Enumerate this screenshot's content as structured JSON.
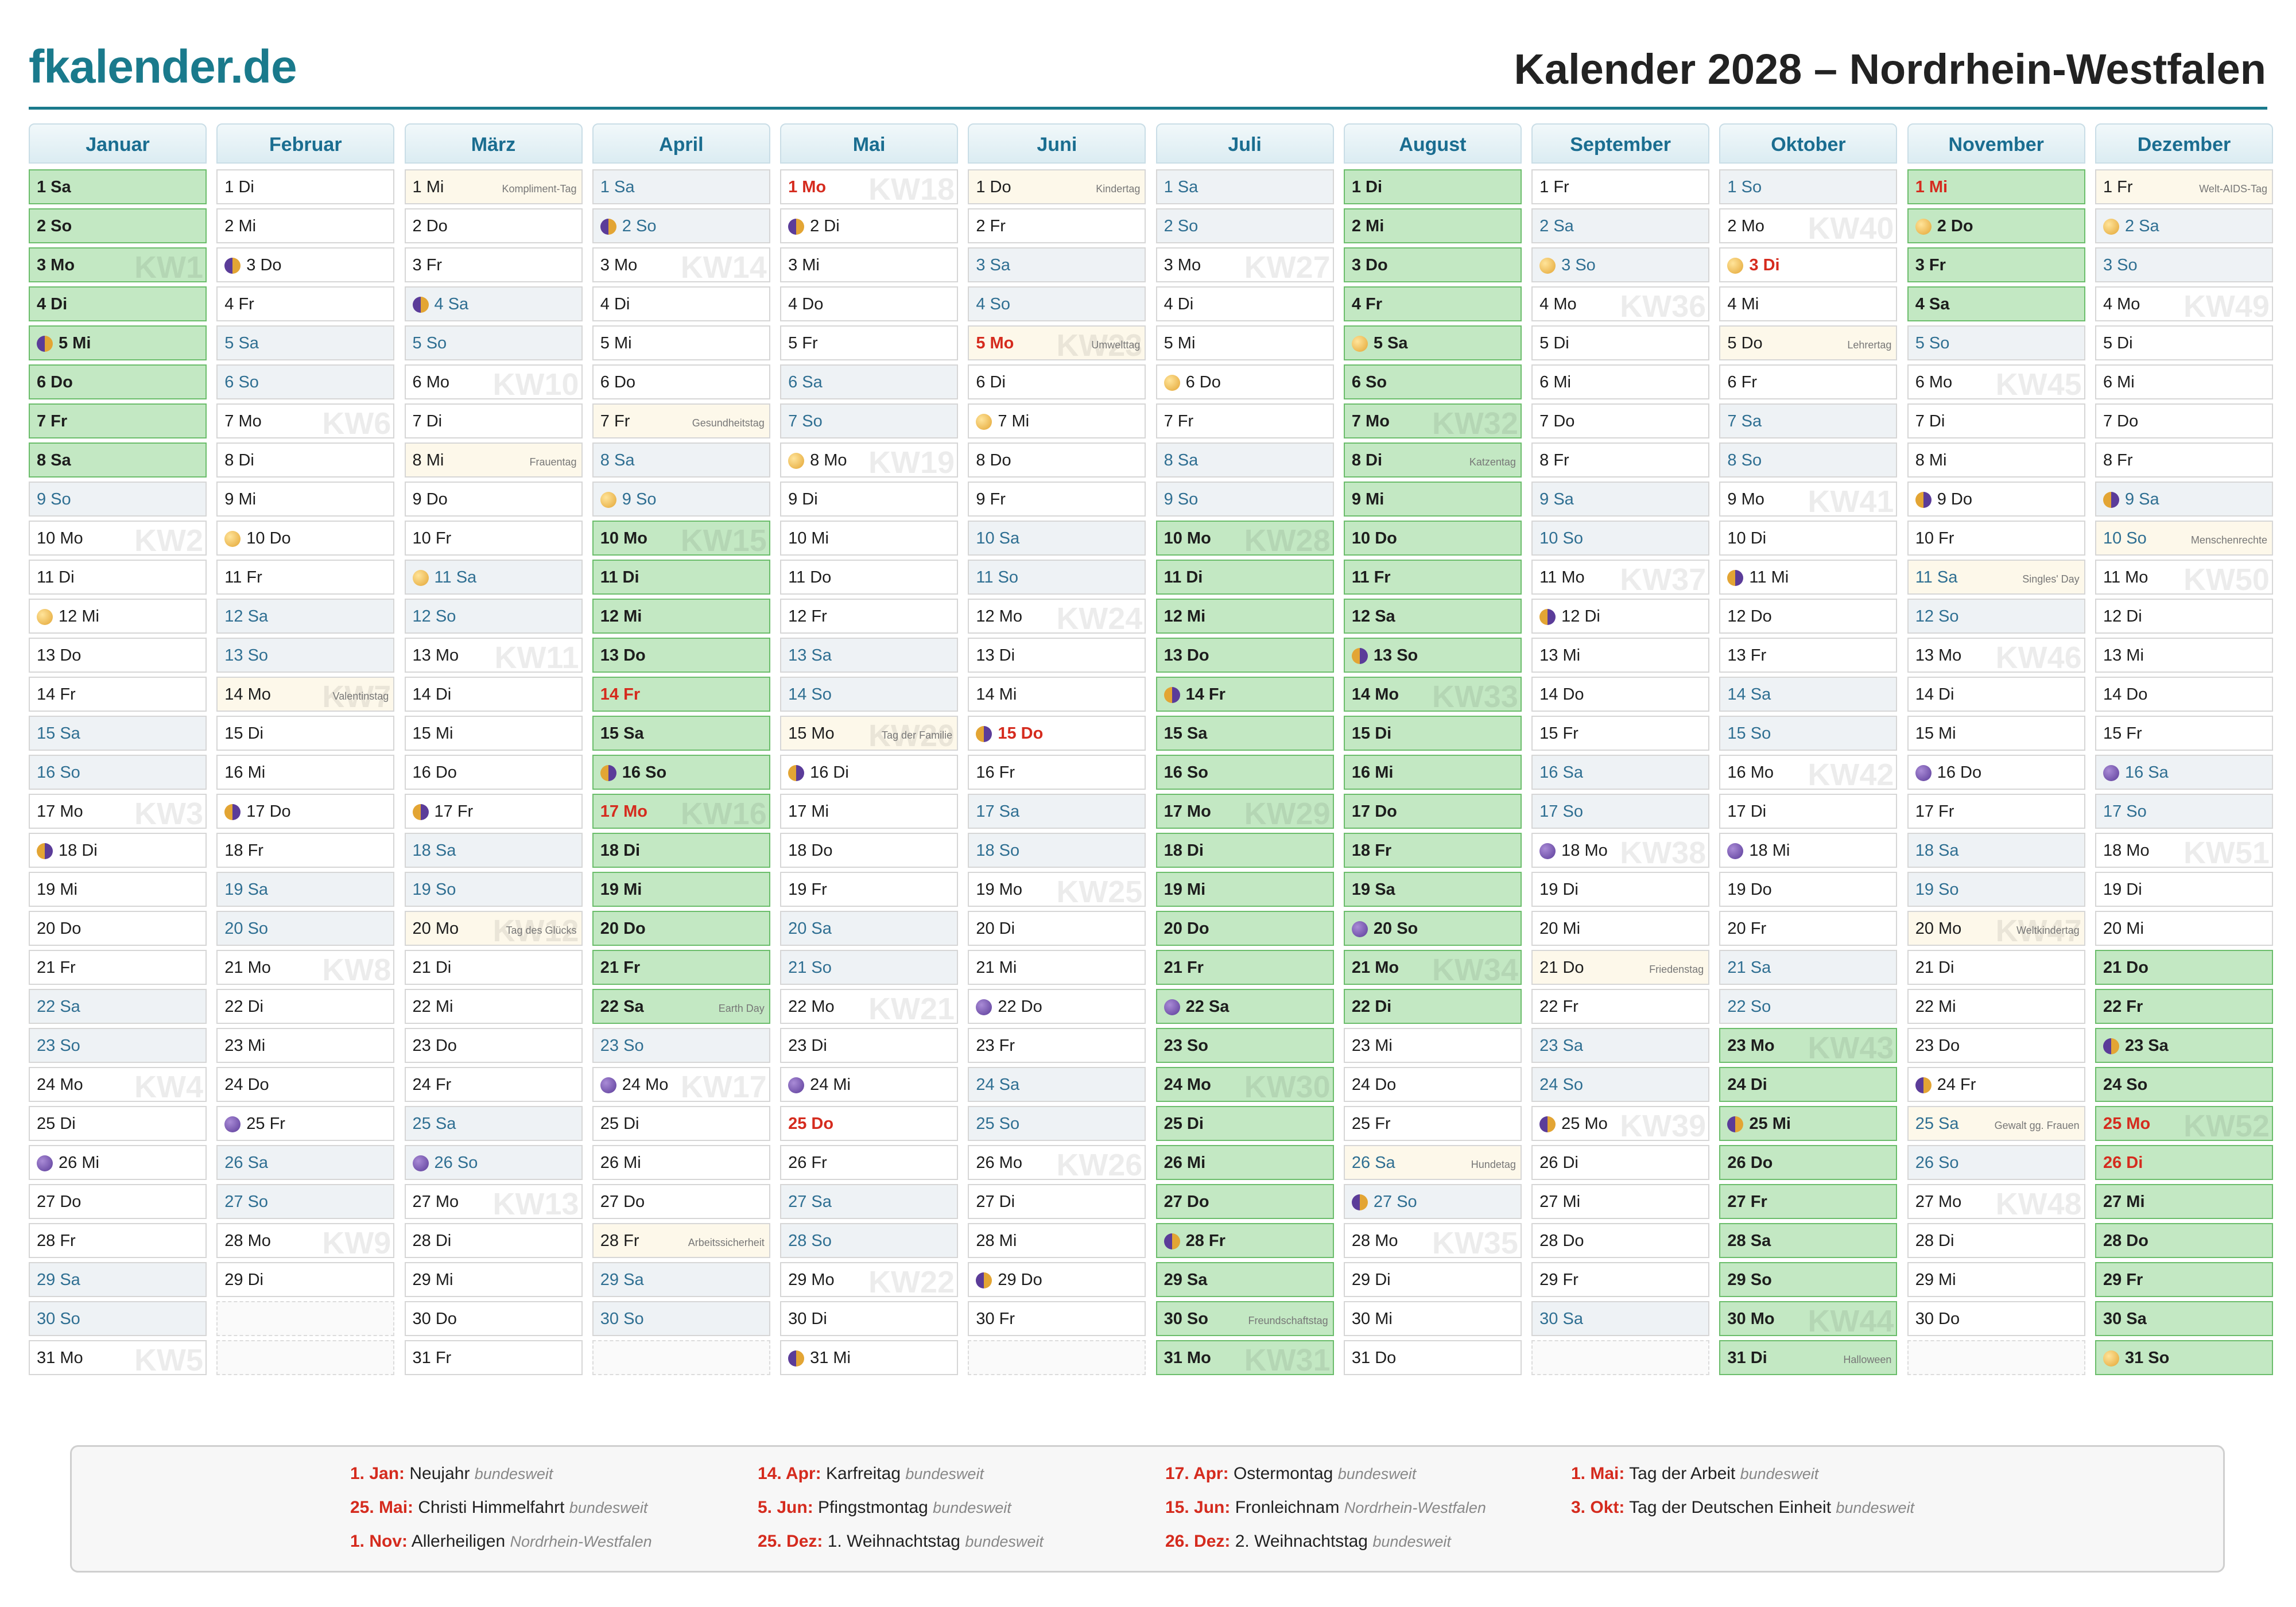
{
  "brand": "fkalender.de",
  "title": "Kalender 2028 – Nordrhein-Westfalen",
  "months": [
    {
      "name": "Januar",
      "d": [
        "1 Sa|HVW||",
        "2 So|VW||",
        "3 Mo|V|KW1|",
        "4 Di|V||",
        "5 Mi|Vl||",
        "6 Do|V||",
        "7 Fr|V||",
        "8 Sa|VW||",
        "9 So|W||",
        "10 Mo||KW2|",
        "11 Di|||",
        "12 Mi|f||",
        "13 Do|||",
        "14 Fr|||",
        "15 Sa|W||",
        "16 So|W||",
        "17 Mo||KW3|",
        "18 Di|e||",
        "19 Mi|||",
        "20 Do|||",
        "21 Fr|||",
        "22 Sa|W||",
        "23 So|W||",
        "24 Mo||KW4|",
        "25 Di|||",
        "26 Mi|n||",
        "27 Do|||",
        "28 Fr|||",
        "29 Sa|W||",
        "30 So|W||",
        "31 Mo||KW5|"
      ]
    },
    {
      "name": "Februar",
      "d": [
        "1 Di|||",
        "2 Mi|||",
        "3 Do|l||",
        "4 Fr|||",
        "5 Sa|W||",
        "6 So|W||",
        "7 Mo||KW6|",
        "8 Di|||",
        "9 Mi|||",
        "10 Do|f||",
        "11 Fr|||",
        "12 Sa|W||",
        "13 So|W||",
        "14 Mo||KW7|Valentinstag",
        "15 Di|||",
        "16 Mi|||",
        "17 Do|e||",
        "18 Fr|||",
        "19 Sa|W||",
        "20 So|W||",
        "21 Mo||KW8|",
        "22 Di|||",
        "23 Mi|||",
        "24 Do|||",
        "25 Fr|n||",
        "26 Sa|W||",
        "27 So|W||",
        "28 Mo||KW9|",
        "29 Di|||",
        "|N||",
        "|N||"
      ]
    },
    {
      "name": "März",
      "d": [
        "1 Mi|||Kompliment-Tag",
        "2 Do|||",
        "3 Fr|||",
        "4 Sa|Wl||",
        "5 So|W||",
        "6 Mo||KW10|",
        "7 Di|||",
        "8 Mi|||Frauentag",
        "9 Do|||",
        "10 Fr|||",
        "11 Sa|Wf||",
        "12 So|W||",
        "13 Mo||KW11|",
        "14 Di|||",
        "15 Mi|||",
        "16 Do|||",
        "17 Fr|e||",
        "18 Sa|W||",
        "19 So|W||",
        "20 Mo||KW12|Tag des Glücks",
        "21 Di|||",
        "22 Mi|||",
        "23 Do|||",
        "24 Fr|||",
        "25 Sa|W||",
        "26 So|Wn||",
        "27 Mo||KW13|",
        "28 Di|||",
        "29 Mi|||",
        "30 Do|||",
        "31 Fr|||"
      ]
    },
    {
      "name": "April",
      "d": [
        "1 Sa|W||",
        "2 So|Wl||",
        "3 Mo||KW14|",
        "4 Di|||",
        "5 Mi|||",
        "6 Do|||",
        "7 Fr|||Gesundheitstag",
        "8 Sa|W||",
        "9 So|Wf||",
        "10 Mo|V|KW15|",
        "11 Di|V||",
        "12 Mi|V||",
        "13 Do|V||",
        "14 Fr|HV||",
        "15 Sa|VW||",
        "16 So|VWe||",
        "17 Mo|HV|KW16|",
        "18 Di|V||",
        "19 Mi|V||",
        "20 Do|V||",
        "21 Fr|V||",
        "22 Sa|VW||Earth Day",
        "23 So|W||",
        "24 Mo|n|KW17|",
        "25 Di|||",
        "26 Mi|||",
        "27 Do|||",
        "28 Fr|||Arbeitssicherheit",
        "29 Sa|W||",
        "30 So|W||",
        "|N||"
      ]
    },
    {
      "name": "Mai",
      "d": [
        "1 Mo|H|KW18|",
        "2 Di|l||",
        "3 Mi|||",
        "4 Do|||",
        "5 Fr|||",
        "6 Sa|W||",
        "7 So|W||",
        "8 Mo|f|KW19|",
        "9 Di|||",
        "10 Mi|||",
        "11 Do|||",
        "12 Fr|||",
        "13 Sa|W||",
        "14 So|W||",
        "15 Mo||KW20|Tag der Familie",
        "16 Di|e||",
        "17 Mi|||",
        "18 Do|||",
        "19 Fr|||",
        "20 Sa|W||",
        "21 So|W||",
        "22 Mo||KW21|",
        "23 Di|||",
        "24 Mi|n||",
        "25 Do|H||",
        "26 Fr|||",
        "27 Sa|W||",
        "28 So|W||",
        "29 Mo||KW22|",
        "30 Di|||",
        "31 Mi|l||"
      ]
    },
    {
      "name": "Juni",
      "d": [
        "1 Do|||Kindertag",
        "2 Fr|||",
        "3 Sa|W||",
        "4 So|W||",
        "5 Mo|H|KW23|Umwelttag",
        "6 Di|||",
        "7 Mi|f||",
        "8 Do|||",
        "9 Fr|||",
        "10 Sa|W||",
        "11 So|W||",
        "12 Mo||KW24|",
        "13 Di|||",
        "14 Mi|||",
        "15 Do|He||",
        "16 Fr|||",
        "17 Sa|W||",
        "18 So|W||",
        "19 Mo||KW25|",
        "20 Di|||",
        "21 Mi|||",
        "22 Do|n||",
        "23 Fr|||",
        "24 Sa|W||",
        "25 So|W||",
        "26 Mo||KW26|",
        "27 Di|||",
        "28 Mi|||",
        "29 Do|l||",
        "30 Fr|||",
        "|N||"
      ]
    },
    {
      "name": "Juli",
      "d": [
        "1 Sa|W||",
        "2 So|W||",
        "3 Mo||KW27|",
        "4 Di|||",
        "5 Mi|||",
        "6 Do|f||",
        "7 Fr|||",
        "8 Sa|W||",
        "9 So|W||",
        "10 Mo|V|KW28|",
        "11 Di|V||",
        "12 Mi|V||",
        "13 Do|V||",
        "14 Fr|Ve||",
        "15 Sa|VW||",
        "16 So|VW||",
        "17 Mo|V|KW29|",
        "18 Di|V||",
        "19 Mi|V||",
        "20 Do|V||",
        "21 Fr|V||",
        "22 Sa|VWn||",
        "23 So|VW||",
        "24 Mo|V|KW30|",
        "25 Di|V||",
        "26 Mi|V||",
        "27 Do|V||",
        "28 Fr|Vl||",
        "29 Sa|VW||",
        "30 So|VW||Freundschaftstag",
        "31 Mo|V|KW31|"
      ]
    },
    {
      "name": "August",
      "d": [
        "1 Di|V||",
        "2 Mi|V||",
        "3 Do|V||",
        "4 Fr|V||",
        "5 Sa|VWf||",
        "6 So|VW||",
        "7 Mo|V|KW32|",
        "8 Di|V||Katzentag",
        "9 Mi|V||",
        "10 Do|V||",
        "11 Fr|V||",
        "12 Sa|VW||",
        "13 So|VWe||",
        "14 Mo|V|KW33|",
        "15 Di|V||",
        "16 Mi|V||",
        "17 Do|V||",
        "18 Fr|V||",
        "19 Sa|VW||",
        "20 So|VWn||",
        "21 Mo|V|KW34|",
        "22 Di|V||",
        "23 Mi|||",
        "24 Do|||",
        "25 Fr|||",
        "26 Sa|W||Hundetag",
        "27 So|Wl||",
        "28 Mo||KW35|",
        "29 Di|||",
        "30 Mi|||",
        "31 Do|||"
      ]
    },
    {
      "name": "September",
      "d": [
        "1 Fr|||",
        "2 Sa|W||",
        "3 So|Wf||",
        "4 Mo||KW36|",
        "5 Di|||",
        "6 Mi|||",
        "7 Do|||",
        "8 Fr|||",
        "9 Sa|W||",
        "10 So|W||",
        "11 Mo||KW37|",
        "12 Di|e||",
        "13 Mi|||",
        "14 Do|||",
        "15 Fr|||",
        "16 Sa|W||",
        "17 So|W||",
        "18 Mo|n|KW38|",
        "19 Di|||",
        "20 Mi|||",
        "21 Do|||Friedenstag",
        "22 Fr|||",
        "23 Sa|W||",
        "24 So|W||",
        "25 Mo|l|KW39|",
        "26 Di|||",
        "27 Mi|||",
        "28 Do|||",
        "29 Fr|||",
        "30 Sa|W||",
        "|N||"
      ]
    },
    {
      "name": "Oktober",
      "d": [
        "1 So|W||",
        "2 Mo||KW40|",
        "3 Di|Hf||",
        "4 Mi|||",
        "5 Do|||Lehrertag",
        "6 Fr|||",
        "7 Sa|W||",
        "8 So|W||",
        "9 Mo||KW41|",
        "10 Di|||",
        "11 Mi|e||",
        "12 Do|||",
        "13 Fr|||",
        "14 Sa|W||",
        "15 So|W||",
        "16 Mo||KW42|",
        "17 Di|||",
        "18 Mi|n||",
        "19 Do|||",
        "20 Fr|||",
        "21 Sa|W||",
        "22 So|W||",
        "23 Mo|V|KW43|",
        "24 Di|V||",
        "25 Mi|Vl||",
        "26 Do|V||",
        "27 Fr|V||",
        "28 Sa|VW||",
        "29 So|VW||",
        "30 Mo|V|KW44|",
        "31 Di|V||Halloween"
      ]
    },
    {
      "name": "November",
      "d": [
        "1 Mi|HV||",
        "2 Do|Vf||",
        "3 Fr|V||",
        "4 Sa|VW||",
        "5 So|W||",
        "6 Mo||KW45|",
        "7 Di|||",
        "8 Mi|||",
        "9 Do|e||",
        "10 Fr|||",
        "11 Sa|W||Singles' Day",
        "12 So|W||",
        "13 Mo||KW46|",
        "14 Di|||",
        "15 Mi|||",
        "16 Do|n||",
        "17 Fr|||",
        "18 Sa|W||",
        "19 So|W||",
        "20 Mo||KW47|Weltkindertag",
        "21 Di|||",
        "22 Mi|||",
        "23 Do|||",
        "24 Fr|l||",
        "25 Sa|W||Gewalt gg. Frauen",
        "26 So|W||",
        "27 Mo||KW48|",
        "28 Di|||",
        "29 Mi|||",
        "30 Do|||",
        "|N||"
      ]
    },
    {
      "name": "Dezember",
      "d": [
        "1 Fr|||Welt-AIDS-Tag",
        "2 Sa|Wf||",
        "3 So|W||",
        "4 Mo||KW49|",
        "5 Di|||",
        "6 Mi|||",
        "7 Do|||",
        "8 Fr|||",
        "9 Sa|We||",
        "10 So|W||Menschenrechte",
        "11 Mo||KW50|",
        "12 Di|||",
        "13 Mi|||",
        "14 Do|||",
        "15 Fr|||",
        "16 Sa|Wn||",
        "17 So|W||",
        "18 Mo||KW51|",
        "19 Di|||",
        "20 Mi|||",
        "21 Do|V||",
        "22 Fr|V||",
        "23 Sa|VWl||",
        "24 So|VW||",
        "25 Mo|HV|KW52|",
        "26 Di|HV||",
        "27 Mi|V||",
        "28 Do|V||",
        "29 Fr|V||",
        "30 Sa|VW||",
        "31 So|VWf||"
      ]
    }
  ],
  "holidays": [
    {
      "date": "1. Jan:",
      "name": "Neujahr",
      "scope": "bundesweit"
    },
    {
      "date": "14. Apr:",
      "name": "Karfreitag",
      "scope": "bundesweit"
    },
    {
      "date": "17. Apr:",
      "name": "Ostermontag",
      "scope": "bundesweit"
    },
    {
      "date": "1. Mai:",
      "name": "Tag der Arbeit",
      "scope": "bundesweit"
    },
    {
      "date": "25. Mai:",
      "name": "Christi Himmelfahrt",
      "scope": "bundesweit"
    },
    {
      "date": "5. Jun:",
      "name": "Pfingstmontag",
      "scope": "bundesweit"
    },
    {
      "date": "15. Jun:",
      "name": "Fronleichnam",
      "scope": "Nordrhein-Westfalen"
    },
    {
      "date": "3. Okt:",
      "name": "Tag der Deutschen Einheit",
      "scope": "bundesweit"
    },
    {
      "date": "1. Nov:",
      "name": "Allerheiligen",
      "scope": "Nordrhein-Westfalen"
    },
    {
      "date": "25. Dez:",
      "name": "1. Weihnachtstag",
      "scope": "bundesweit"
    },
    {
      "date": "26. Dez:",
      "name": "2. Weihnachtstag",
      "scope": "bundesweit"
    }
  ]
}
